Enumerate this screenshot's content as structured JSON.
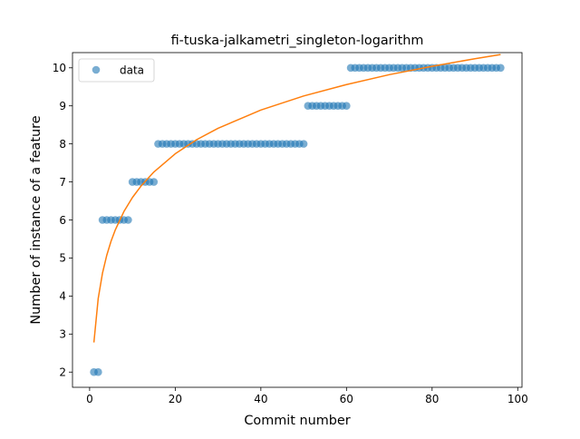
{
  "chart_data": {
    "type": "scatter",
    "title": "fi-tuska-jalkametri_singleton-logarithm",
    "xlabel": "Commit number",
    "ylabel": "Number of instance of a feature",
    "xlim": [
      -4,
      101
    ],
    "ylim": [
      1.6,
      10.4
    ],
    "xticks": [
      0,
      20,
      40,
      60,
      80,
      100
    ],
    "yticks": [
      2,
      3,
      4,
      5,
      6,
      7,
      8,
      9,
      10
    ],
    "grid": false,
    "legend": {
      "placement": "top-left",
      "entries": [
        "data"
      ]
    },
    "colors": {
      "data": "#1f77b4",
      "fit": "#ff7f0e"
    },
    "series": [
      {
        "name": "data",
        "kind": "points",
        "x": [
          1,
          2,
          3,
          4,
          5,
          6,
          7,
          8,
          9,
          10,
          11,
          12,
          13,
          14,
          15,
          16,
          17,
          18,
          19,
          20,
          21,
          22,
          23,
          24,
          25,
          26,
          27,
          28,
          29,
          30,
          31,
          32,
          33,
          34,
          35,
          36,
          37,
          38,
          39,
          40,
          41,
          42,
          43,
          44,
          45,
          46,
          47,
          48,
          49,
          50,
          51,
          52,
          53,
          54,
          55,
          56,
          57,
          58,
          59,
          60,
          61,
          62,
          63,
          64,
          65,
          66,
          67,
          68,
          69,
          70,
          71,
          72,
          73,
          74,
          75,
          76,
          77,
          78,
          79,
          80,
          81,
          82,
          83,
          84,
          85,
          86,
          87,
          88,
          89,
          90,
          91,
          92,
          93,
          94,
          95,
          96
        ],
        "y": [
          2,
          2,
          6,
          6,
          6,
          6,
          6,
          6,
          6,
          7,
          7,
          7,
          7,
          7,
          7,
          8,
          8,
          8,
          8,
          8,
          8,
          8,
          8,
          8,
          8,
          8,
          8,
          8,
          8,
          8,
          8,
          8,
          8,
          8,
          8,
          8,
          8,
          8,
          8,
          8,
          8,
          8,
          8,
          8,
          8,
          8,
          8,
          8,
          8,
          8,
          9,
          9,
          9,
          9,
          9,
          9,
          9,
          9,
          9,
          9,
          10,
          10,
          10,
          10,
          10,
          10,
          10,
          10,
          10,
          10,
          10,
          10,
          10,
          10,
          10,
          10,
          10,
          10,
          10,
          10,
          10,
          10,
          10,
          10,
          10,
          10,
          10,
          10,
          10,
          10,
          10,
          10,
          10,
          10,
          10,
          10
        ]
      },
      {
        "kind": "line",
        "x": [
          1,
          2,
          3,
          4,
          5,
          6,
          8,
          10,
          12,
          15,
          20,
          25,
          30,
          40,
          50,
          60,
          70,
          80,
          90,
          96
        ],
        "y": [
          2.78,
          3.93,
          4.6,
          5.07,
          5.44,
          5.74,
          6.22,
          6.59,
          6.89,
          7.26,
          7.74,
          8.11,
          8.41,
          8.89,
          9.26,
          9.56,
          9.82,
          10.04,
          10.24,
          10.35
        ]
      }
    ]
  }
}
